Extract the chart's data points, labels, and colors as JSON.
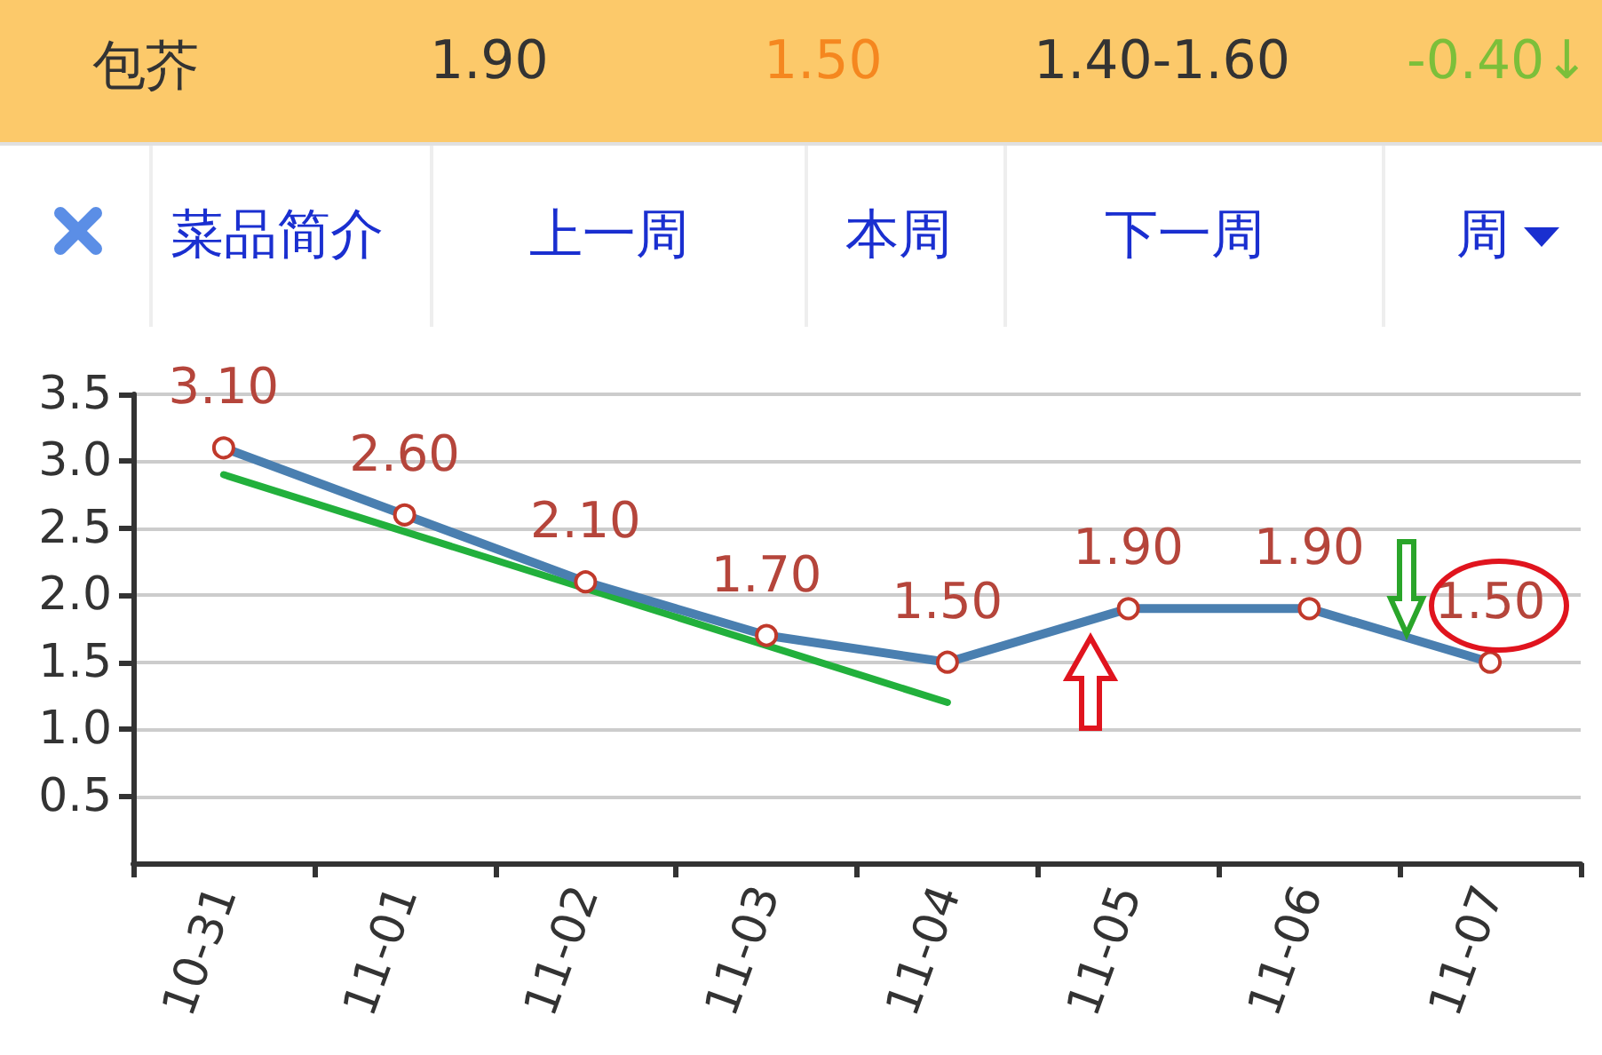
{
  "chart_data": {
    "type": "line",
    "title": "包芥",
    "annotations": [
      "1.90",
      "1.50",
      "1.40-1.60",
      "-0.40↓",
      "菜品简介",
      "上一周",
      "本周",
      "下一周",
      "周"
    ],
    "categories": [
      "10-31",
      "11-01",
      "11-02",
      "11-03",
      "11-04",
      "11-05",
      "11-06",
      "11-07"
    ],
    "series": [
      {
        "color": "#4a7fb0",
        "values": [
          3.1,
          2.6,
          2.1,
          1.7,
          1.5,
          1.9,
          1.9,
          1.5
        ],
        "value_labels": [
          "3.10",
          "2.60",
          "2.10",
          "1.70",
          "1.50",
          "1.90",
          "1.90",
          "1.50"
        ]
      },
      {
        "color": "#22b03c",
        "x": [
          "10-31",
          "11-04"
        ],
        "values": [
          2.9,
          1.2
        ],
        "marker": "none"
      }
    ],
    "ylim": [
      0,
      3.5
    ],
    "yticks": [
      0.5,
      {
        "value": 1,
        "label": "1.0"
      },
      1.5,
      {
        "value": 2,
        "label": "2.0"
      },
      2.5,
      {
        "value": 3,
        "label": "3.0"
      },
      3.5
    ],
    "grid": "y",
    "marker": "circle",
    "line_style": "solid"
  }
}
